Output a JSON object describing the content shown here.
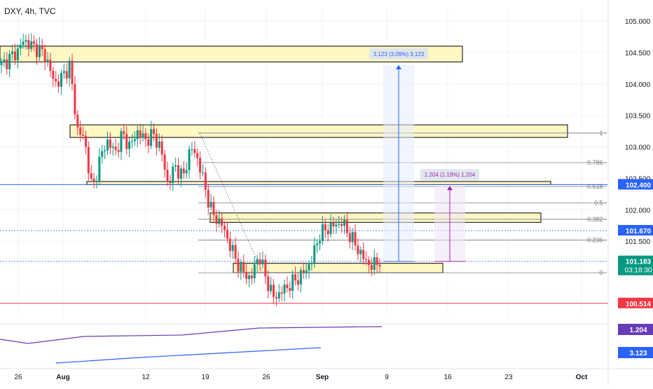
{
  "header": {
    "symbol_label": "DXY, 4h, TVC"
  },
  "colors": {
    "up": "#089981",
    "down": "#f23645",
    "grid": "#f0f3fa",
    "zone_fill": "#fff7c4",
    "blue": "#2962ff",
    "purple": "#9c27b0",
    "red_line": "#f23645",
    "fib": "#787b86",
    "dots": "#2962ff",
    "green_tag": "#089981",
    "purple_tag": "#673ab7"
  },
  "chart_data": {
    "type": "candlestick",
    "title": "DXY, 4h, TVC",
    "x_ticks": [
      "26",
      "Aug",
      "12",
      "19",
      "26",
      "Sep",
      "9",
      "16",
      "23",
      "Oct"
    ],
    "y_ticks": [
      "105.000",
      "104.500",
      "104.000",
      "103.500",
      "103.000",
      "102.500",
      "102.000",
      "101.500"
    ],
    "ylim": [
      100.3,
      105.2
    ],
    "close_path": [
      104.3,
      104.4,
      104.5,
      104.7,
      104.6,
      104.55,
      104.4,
      104.0,
      104.1,
      104.3,
      103.3,
      103.1,
      102.3,
      102.8,
      103.1,
      102.9,
      103.2,
      103.0,
      103.25,
      103.1,
      103.2,
      103.0,
      102.4,
      102.7,
      102.5,
      103.0,
      102.8,
      102.3,
      101.9,
      101.8,
      101.5,
      101.2,
      101.0,
      100.9,
      101.3,
      100.9,
      100.6,
      100.7,
      100.8,
      100.9,
      101.0,
      101.2,
      101.6,
      101.7,
      101.75,
      101.8,
      101.6,
      101.4,
      101.2,
      101.1,
      101.2
    ],
    "zones": [
      {
        "name": "zone-top",
        "from": 104.35,
        "to": 104.6
      },
      {
        "name": "zone-upper",
        "from": 103.15,
        "to": 103.35
      },
      {
        "name": "zone-middle",
        "from": 102.4,
        "to": 102.45
      },
      {
        "name": "zone-mid-low",
        "from": 101.8,
        "to": 101.95
      },
      {
        "name": "zone-bottom",
        "from": 101.0,
        "to": 101.15
      }
    ],
    "fib_levels": [
      {
        "label": "1",
        "value": 103.22
      },
      {
        "label": "0.786",
        "value": 102.75
      },
      {
        "label": "0.618",
        "value": 102.37
      },
      {
        "label": "0.5",
        "value": 102.11
      },
      {
        "label": "0.382",
        "value": 101.85
      },
      {
        "label": "0.236",
        "value": 101.52
      },
      {
        "label": "0",
        "value": 101.0
      }
    ],
    "dotted_levels": [
      101.67,
      101.18
    ],
    "horizontal_levels": [
      {
        "name": "blue-level",
        "value": 102.4
      },
      {
        "name": "red-level",
        "value": 100.514
      }
    ],
    "projections": [
      {
        "label": "3.123 (3.09%) 3,123",
        "from": 101.18,
        "to": 104.3
      },
      {
        "label": "1.204 (1.19%) 1,204",
        "from": 101.18,
        "to": 102.38
      }
    ],
    "price_tags": [
      {
        "name": "price-tag-102400",
        "text": "102.400",
        "value": 102.4
      },
      {
        "name": "price-tag-101670",
        "text": "101.670",
        "value": 101.67
      },
      {
        "name": "price-tag-current",
        "text": "101.183",
        "sub": "03:18:30",
        "value": 101.183
      },
      {
        "name": "price-tag-100514",
        "text": "100.514",
        "value": 100.514
      }
    ],
    "indicator_tags": [
      "1.204",
      "3.123"
    ]
  }
}
